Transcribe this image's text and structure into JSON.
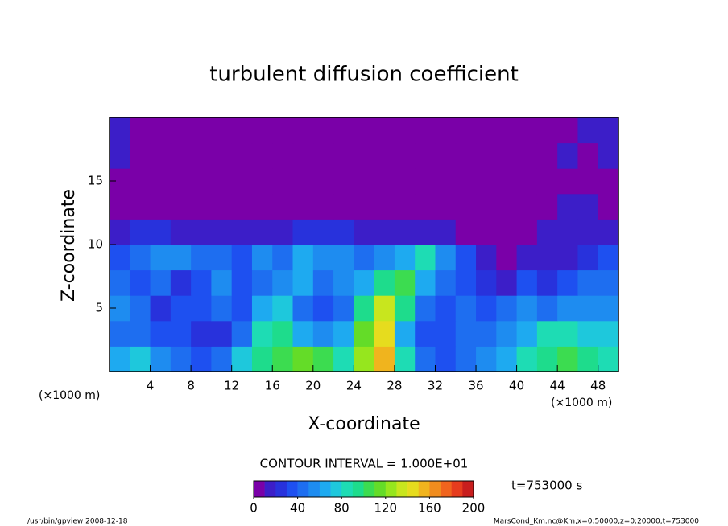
{
  "chart_data": {
    "type": "heatmap",
    "title": "turbulent diffusion coefficient",
    "xlabel": "X-coordinate",
    "ylabel": "Z-coordinate",
    "x_unit": "(×1000 m)",
    "y_unit": "(×1000 m)",
    "xlim": [
      0,
      50
    ],
    "ylim": [
      0,
      20
    ],
    "xticks": [
      4,
      8,
      12,
      16,
      20,
      24,
      28,
      32,
      36,
      40,
      44,
      48
    ],
    "yticks": [
      5,
      10,
      15
    ],
    "x": [
      1,
      3,
      5,
      7,
      9,
      11,
      13,
      15,
      17,
      19,
      21,
      23,
      25,
      27,
      29,
      31,
      33,
      35,
      37,
      39,
      41,
      43,
      45,
      47,
      49
    ],
    "y": [
      1,
      3,
      5,
      7,
      9,
      11,
      13,
      15,
      17,
      19
    ],
    "values": [
      [
        60,
        70,
        50,
        40,
        30,
        40,
        70,
        90,
        100,
        110,
        100,
        80,
        120,
        150,
        80,
        40,
        30,
        40,
        50,
        60,
        80,
        90,
        100,
        90,
        80
      ],
      [
        40,
        40,
        30,
        30,
        20,
        20,
        40,
        80,
        90,
        60,
        50,
        60,
        110,
        140,
        60,
        30,
        30,
        40,
        40,
        50,
        60,
        80,
        80,
        70,
        70
      ],
      [
        50,
        40,
        20,
        30,
        30,
        40,
        30,
        60,
        70,
        40,
        30,
        40,
        90,
        130,
        90,
        40,
        30,
        40,
        30,
        40,
        50,
        40,
        50,
        50,
        50
      ],
      [
        40,
        30,
        40,
        20,
        30,
        50,
        30,
        40,
        50,
        60,
        40,
        50,
        60,
        90,
        100,
        60,
        40,
        30,
        20,
        10,
        30,
        20,
        30,
        40,
        40
      ],
      [
        30,
        40,
        50,
        50,
        40,
        40,
        30,
        50,
        40,
        60,
        50,
        50,
        40,
        50,
        60,
        80,
        50,
        30,
        10,
        0,
        10,
        10,
        10,
        20,
        30
      ],
      [
        10,
        20,
        20,
        10,
        10,
        10,
        10,
        10,
        10,
        20,
        20,
        20,
        10,
        10,
        10,
        10,
        10,
        0,
        0,
        0,
        0,
        10,
        10,
        10,
        10
      ],
      [
        0,
        0,
        0,
        0,
        0,
        0,
        0,
        0,
        0,
        0,
        0,
        0,
        0,
        0,
        0,
        0,
        0,
        0,
        0,
        0,
        0,
        0,
        10,
        10,
        0
      ],
      [
        0,
        0,
        0,
        0,
        0,
        0,
        0,
        0,
        0,
        0,
        0,
        0,
        0,
        0,
        0,
        0,
        0,
        0,
        0,
        0,
        0,
        0,
        0,
        0,
        0
      ],
      [
        10,
        0,
        0,
        0,
        0,
        0,
        0,
        0,
        0,
        0,
        0,
        0,
        0,
        0,
        0,
        0,
        0,
        0,
        0,
        0,
        0,
        0,
        10,
        0,
        10
      ],
      [
        10,
        0,
        0,
        0,
        0,
        0,
        0,
        0,
        0,
        0,
        0,
        0,
        0,
        0,
        0,
        0,
        0,
        0,
        0,
        0,
        0,
        0,
        0,
        10,
        10
      ]
    ],
    "colors": [
      "#7a00a8",
      "#3c1ec8",
      "#2832dc",
      "#1e50f0",
      "#1e6ef0",
      "#1e8cf0",
      "#1eaaf0",
      "#1ec8dc",
      "#1edcb4",
      "#1edc8c",
      "#3cdc50",
      "#64dc28",
      "#96e61e",
      "#c8e61e",
      "#e6dc1e",
      "#f0b41e",
      "#f08c1e",
      "#f0641e",
      "#e63c1e",
      "#c81e1e"
    ],
    "colorbar": {
      "lim": [
        0,
        200
      ],
      "ticks": [
        0,
        40,
        80,
        120,
        160,
        200
      ]
    },
    "contour_interval": "CONTOUR INTERVAL = 1.000E+01",
    "time_label": "t=753000 s",
    "footer_left": "/usr/bin/gpview  2008-12-18",
    "footer_right": "MarsCond_Km.nc@Km,x=0:50000,z=0:20000,t=753000"
  }
}
